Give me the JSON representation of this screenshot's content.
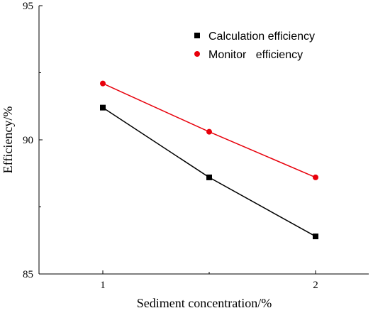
{
  "chart_data": {
    "type": "line",
    "x": [
      1,
      1.5,
      2
    ],
    "xlim": [
      0.7,
      2.25
    ],
    "ylim": [
      85,
      95
    ],
    "xticks": [
      1,
      2
    ],
    "yticks": [
      85,
      90,
      95
    ],
    "xlabel": "Sediment concentration/%",
    "ylabel": "Efficiency/%",
    "grid": false,
    "legend_position": "top-right",
    "series": [
      {
        "name": "Calculation efficiency",
        "values": [
          91.2,
          88.6,
          86.4
        ],
        "color": "#000000",
        "marker": "square"
      },
      {
        "name": "Monitor   efficiency",
        "values": [
          92.1,
          90.3,
          88.6
        ],
        "color": "#e8000b",
        "marker": "circle"
      }
    ]
  }
}
